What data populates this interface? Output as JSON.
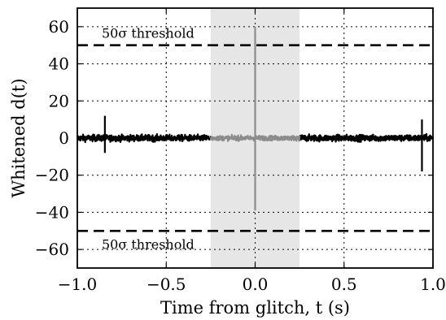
{
  "chart_data": {
    "type": "line",
    "title": "",
    "xlabel": "Time from glitch, t (s)",
    "ylabel": "Whitened d(t)",
    "xlim": [
      -1.0,
      1.0
    ],
    "ylim": [
      -70,
      70
    ],
    "x_ticks": [
      -1.0,
      -0.5,
      0.0,
      0.5,
      1.0
    ],
    "x_tick_labels": [
      "−1.0",
      "−0.5",
      "0.0",
      "0.5",
      "1.0"
    ],
    "y_ticks": [
      -60,
      -40,
      -20,
      0,
      20,
      40,
      60
    ],
    "y_tick_labels": [
      "−60",
      "−40",
      "−20",
      "0",
      "20",
      "40",
      "60"
    ],
    "grid": true,
    "shaded_region": {
      "x": [
        -0.25,
        0.25
      ],
      "color": "#e6e6e6"
    },
    "thresholds": [
      {
        "y": 50,
        "label": "50σ threshold",
        "style": "dashed",
        "color": "#000000"
      },
      {
        "y": -50,
        "label": "50σ threshold",
        "style": "dashed",
        "color": "#000000"
      }
    ],
    "series": [
      {
        "color": "#000000",
        "noise_amplitude": 2,
        "segments": [
          [
            -1.0,
            -0.25
          ],
          [
            0.25,
            1.0
          ]
        ],
        "spikes": [
          {
            "x": -0.845,
            "y": [
              -8,
              12
            ]
          },
          {
            "x": 0.938,
            "y": [
              -18,
              10
            ]
          }
        ]
      },
      {
        "color": "#8c8c8c",
        "noise_amplitude": 1.5,
        "segments": [
          [
            -0.25,
            0.25
          ]
        ],
        "spikes": [
          {
            "x": 0.0,
            "y": [
              -39,
              60
            ]
          }
        ]
      }
    ]
  }
}
